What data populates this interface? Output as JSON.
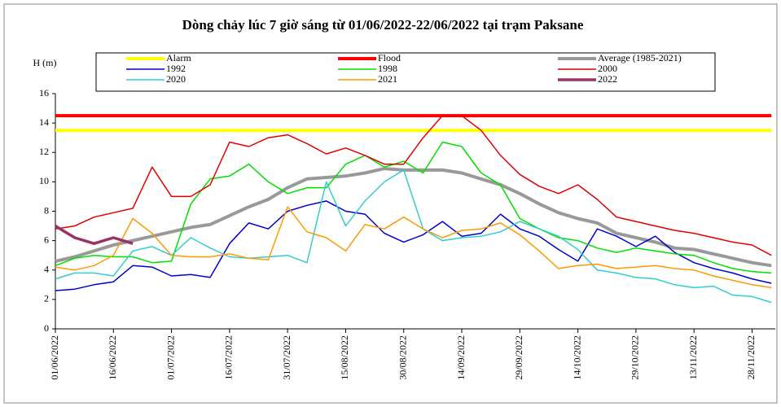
{
  "chart_data": {
    "type": "line",
    "title": "Dòng chảy lúc 7 giờ sáng từ 01/06/2022-22/06/2022 tại trạm Paksane",
    "y_label": "H (m)",
    "x": [
      "01/06/2022",
      "06/06/2022",
      "11/06/2022",
      "16/06/2022",
      "21/06/2022",
      "26/06/2022",
      "01/07/2022",
      "06/07/2022",
      "11/07/2022",
      "16/07/2022",
      "21/07/2022",
      "26/07/2022",
      "31/07/2022",
      "05/08/2022",
      "10/08/2022",
      "15/08/2022",
      "20/08/2022",
      "25/08/2022",
      "30/08/2022",
      "04/09/2022",
      "09/09/2022",
      "14/09/2022",
      "19/09/2022",
      "24/09/2022",
      "29/09/2022",
      "04/10/2022",
      "09/10/2022",
      "14/10/2022",
      "19/10/2022",
      "24/10/2022",
      "29/10/2022",
      "03/11/2022",
      "08/11/2022",
      "13/11/2022",
      "18/11/2022",
      "23/11/2022",
      "28/11/2022",
      "03/12/2022"
    ],
    "xlim": [
      "01/06/2022",
      "04/12/2022"
    ],
    "xticks": [
      "01/06/2022",
      "16/06/2022",
      "01/07/2022",
      "16/07/2022",
      "31/07/2022",
      "15/08/2022",
      "30/08/2022",
      "14/09/2022",
      "29/09/2022",
      "14/10/2022",
      "29/10/2022",
      "13/11/2022",
      "28/11/2022"
    ],
    "ylim": [
      0,
      16
    ],
    "yticks": [
      0,
      2,
      4,
      6,
      8,
      10,
      12,
      14,
      16
    ],
    "grid": false,
    "series": [
      {
        "name": "Alarm",
        "color": "#ffff00",
        "linewidth": 4,
        "values": [
          13.5,
          13.5,
          13.5,
          13.5,
          13.5,
          13.5,
          13.5,
          13.5,
          13.5,
          13.5,
          13.5,
          13.5,
          13.5,
          13.5,
          13.5,
          13.5,
          13.5,
          13.5,
          13.5,
          13.5,
          13.5,
          13.5,
          13.5,
          13.5,
          13.5,
          13.5,
          13.5,
          13.5,
          13.5,
          13.5,
          13.5,
          13.5,
          13.5,
          13.5,
          13.5,
          13.5,
          13.5,
          13.5
        ]
      },
      {
        "name": "Flood",
        "color": "#ff0000",
        "linewidth": 4,
        "values": [
          14.5,
          14.5,
          14.5,
          14.5,
          14.5,
          14.5,
          14.5,
          14.5,
          14.5,
          14.5,
          14.5,
          14.5,
          14.5,
          14.5,
          14.5,
          14.5,
          14.5,
          14.5,
          14.5,
          14.5,
          14.5,
          14.5,
          14.5,
          14.5,
          14.5,
          14.5,
          14.5,
          14.5,
          14.5,
          14.5,
          14.5,
          14.5,
          14.5,
          14.5,
          14.5,
          14.5,
          14.5,
          14.5
        ]
      },
      {
        "name": "Average (1985-2021)",
        "color": "#999999",
        "linewidth": 4,
        "values": [
          4.6,
          4.9,
          5.3,
          5.7,
          6.0,
          6.3,
          6.6,
          6.9,
          7.1,
          7.7,
          8.3,
          8.8,
          9.6,
          10.2,
          10.3,
          10.4,
          10.6,
          10.9,
          10.8,
          10.8,
          10.8,
          10.6,
          10.2,
          9.8,
          9.2,
          8.5,
          7.9,
          7.5,
          7.2,
          6.5,
          6.2,
          5.9,
          5.5,
          5.4,
          5.1,
          4.8,
          4.5,
          4.3
        ]
      },
      {
        "name": "1992",
        "color": "#0000cc",
        "linewidth": 1.5,
        "values": [
          2.6,
          2.7,
          3.0,
          3.2,
          4.3,
          4.2,
          3.6,
          3.7,
          3.5,
          5.8,
          7.2,
          6.8,
          8.0,
          8.4,
          8.7,
          8.0,
          7.8,
          6.5,
          5.9,
          6.4,
          7.3,
          6.3,
          6.5,
          7.8,
          6.8,
          6.3,
          5.4,
          4.6,
          6.8,
          6.3,
          5.6,
          6.3,
          5.2,
          4.5,
          4.1,
          3.8,
          3.4,
          3.1
        ]
      },
      {
        "name": "1998",
        "color": "#00e000",
        "linewidth": 1.5,
        "values": [
          4.3,
          4.8,
          5.0,
          4.9,
          4.9,
          4.5,
          4.6,
          8.5,
          10.2,
          10.4,
          11.2,
          10.0,
          9.2,
          9.6,
          9.6,
          11.2,
          11.8,
          11.0,
          11.4,
          10.6,
          12.7,
          12.4,
          10.6,
          9.8,
          7.5,
          6.8,
          6.2,
          6.0,
          5.5,
          5.2,
          5.5,
          5.3,
          5.1,
          5.0,
          4.5,
          4.1,
          3.9,
          3.8
        ]
      },
      {
        "name": "2000",
        "color": "#e00000",
        "linewidth": 1.5,
        "values": [
          6.8,
          7.0,
          7.6,
          7.9,
          8.2,
          11.0,
          9.0,
          9.0,
          9.8,
          12.7,
          12.4,
          13.0,
          13.2,
          12.6,
          11.9,
          12.3,
          11.8,
          11.2,
          11.2,
          13.0,
          14.5,
          14.5,
          13.5,
          11.8,
          10.5,
          9.7,
          9.2,
          9.8,
          8.8,
          7.6,
          7.3,
          7.0,
          6.7,
          6.5,
          6.2,
          5.9,
          5.7,
          5.0
        ]
      },
      {
        "name": "2020",
        "color": "#33cccc",
        "linewidth": 1.5,
        "values": [
          3.4,
          3.8,
          3.8,
          3.6,
          5.3,
          5.6,
          5.0,
          6.2,
          5.5,
          4.9,
          4.8,
          4.9,
          5.0,
          4.5,
          10.0,
          7.0,
          8.7,
          10.0,
          10.8,
          6.8,
          6.0,
          6.2,
          6.3,
          6.6,
          7.3,
          6.8,
          6.3,
          5.4,
          4.0,
          3.8,
          3.5,
          3.4,
          3.0,
          2.8,
          2.9,
          2.3,
          2.2,
          1.8
        ]
      },
      {
        "name": "2021",
        "color": "#ff9900",
        "linewidth": 1.5,
        "values": [
          4.2,
          4.0,
          4.3,
          5.0,
          7.5,
          6.5,
          5.0,
          4.9,
          4.9,
          5.1,
          4.8,
          4.7,
          8.3,
          6.6,
          6.2,
          5.3,
          7.1,
          6.8,
          7.6,
          6.8,
          6.2,
          6.7,
          6.8,
          7.2,
          6.4,
          5.3,
          4.1,
          4.3,
          4.4,
          4.1,
          4.2,
          4.3,
          4.1,
          4.0,
          3.6,
          3.3,
          3.0,
          2.8
        ]
      },
      {
        "name": "2022",
        "color": "#993366",
        "linewidth": 3.5,
        "values": [
          7.0,
          6.2,
          5.8,
          6.2,
          5.8,
          null,
          null,
          null,
          null,
          null,
          null,
          null,
          null,
          null,
          null,
          null,
          null,
          null,
          null,
          null,
          null,
          null,
          null,
          null,
          null,
          null,
          null,
          null,
          null,
          null,
          null,
          null,
          null,
          null,
          null,
          null,
          null,
          null
        ]
      }
    ]
  }
}
